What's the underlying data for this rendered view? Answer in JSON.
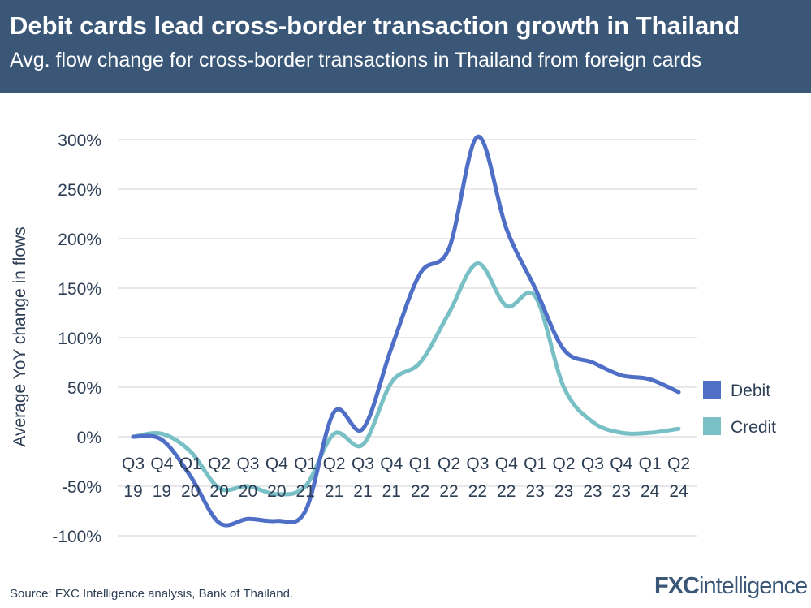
{
  "header": {
    "title": "Debit cards lead cross-border transaction growth in Thailand",
    "subtitle": "Avg. flow change for cross-border transactions in Thailand from foreign cards"
  },
  "footer": {
    "source": "Source: FXC Intelligence analysis, Bank of Thailand.",
    "logo": "FXCintelligence"
  },
  "chart_data": {
    "type": "line",
    "title": "Debit cards lead cross-border transaction growth in Thailand",
    "ylabel": "Average YoY change in flows",
    "ylim": [
      -100,
      300
    ],
    "yticks": [
      300,
      250,
      200,
      150,
      100,
      50,
      0,
      -50,
      -100
    ],
    "ytick_labels": [
      "300%",
      "250%",
      "200%",
      "150%",
      "100%",
      "50%",
      "0%",
      "-50%",
      "-100%"
    ],
    "grid": true,
    "legend": "right",
    "categories": [
      [
        "Q3",
        "19"
      ],
      [
        "Q4",
        "19"
      ],
      [
        "Q1",
        "20"
      ],
      [
        "Q2",
        "20"
      ],
      [
        "Q3",
        "20"
      ],
      [
        "Q4",
        "20"
      ],
      [
        "Q1",
        "21"
      ],
      [
        "Q2",
        "21"
      ],
      [
        "Q3",
        "21"
      ],
      [
        "Q4",
        "21"
      ],
      [
        "Q1",
        "22"
      ],
      [
        "Q2",
        "22"
      ],
      [
        "Q3",
        "22"
      ],
      [
        "Q4",
        "22"
      ],
      [
        "Q1",
        "23"
      ],
      [
        "Q2",
        "23"
      ],
      [
        "Q3",
        "23"
      ],
      [
        "Q4",
        "23"
      ],
      [
        "Q1",
        "24"
      ],
      [
        "Q2",
        "24"
      ]
    ],
    "series": [
      {
        "name": "Debit",
        "color": "#4f6ec6",
        "values": [
          0,
          -3,
          -40,
          -87,
          -83,
          -85,
          -75,
          25,
          8,
          90,
          165,
          190,
          303,
          210,
          150,
          88,
          75,
          62,
          58,
          45
        ]
      },
      {
        "name": "Credit",
        "color": "#79c0c6",
        "values": [
          0,
          3,
          -15,
          -52,
          -50,
          -58,
          -50,
          3,
          -8,
          55,
          75,
          125,
          175,
          132,
          142,
          50,
          15,
          4,
          4,
          8
        ]
      }
    ]
  }
}
